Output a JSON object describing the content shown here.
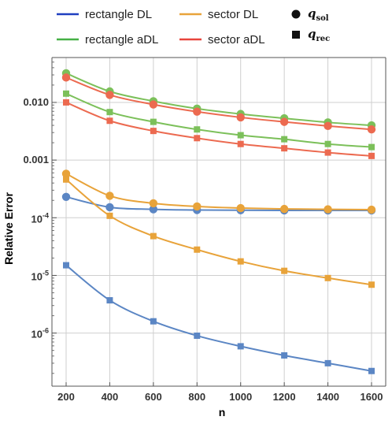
{
  "chart_data": {
    "type": "line",
    "xlabel": "n",
    "ylabel": "Relative Error",
    "y_scale": "log",
    "xlim": [
      200,
      1600
    ],
    "ylim": [
      1.2e-07,
      0.06
    ],
    "grid": true,
    "x_ticks": [
      {
        "value": 200,
        "label": "200"
      },
      {
        "value": 400,
        "label": "400"
      },
      {
        "value": 600,
        "label": "600"
      },
      {
        "value": 800,
        "label": "800"
      },
      {
        "value": 1000,
        "label": "1000"
      },
      {
        "value": 1200,
        "label": "1200"
      },
      {
        "value": 1400,
        "label": "1400"
      },
      {
        "value": 1600,
        "label": "1600"
      }
    ],
    "y_ticks": [
      {
        "value": 0.01,
        "label": "0.010",
        "base": "",
        "exp": ""
      },
      {
        "value": 0.001,
        "label": "0.001",
        "base": "",
        "exp": ""
      },
      {
        "value": 0.0001,
        "label": "",
        "base": "10",
        "exp": "-4"
      },
      {
        "value": 1e-05,
        "label": "",
        "base": "10",
        "exp": "-5"
      },
      {
        "value": 1e-06,
        "label": "",
        "base": "10",
        "exp": "-6"
      }
    ],
    "x": [
      200,
      400,
      600,
      800,
      1000,
      1200,
      1400,
      1600
    ],
    "series": [
      {
        "name": "rectangle DL",
        "quantity": "q_sol",
        "color": "#5b86c4",
        "line_color": "#1f3fc0",
        "marker": "circle",
        "values": [
          0.00023,
          0.000152,
          0.00014,
          0.000136,
          0.000135,
          0.000134,
          0.000134,
          0.000134
        ]
      },
      {
        "name": "rectangle DL",
        "quantity": "q_rec",
        "color": "#5b86c4",
        "line_color": "#1f3fc0",
        "marker": "square",
        "values": [
          1.5e-05,
          3.7e-06,
          1.6e-06,
          9e-07,
          5.9e-07,
          4.1e-07,
          3e-07,
          2.2e-07
        ]
      },
      {
        "name": "sector DL",
        "quantity": "q_sol",
        "color": "#e8a33a",
        "line_color": "#e8a33a",
        "marker": "circle",
        "values": [
          0.00058,
          0.00024,
          0.000178,
          0.000157,
          0.000147,
          0.000142,
          0.00014,
          0.000138
        ]
      },
      {
        "name": "sector DL",
        "quantity": "q_rec",
        "color": "#e8a33a",
        "line_color": "#e8a33a",
        "marker": "square",
        "values": [
          0.00046,
          0.000108,
          4.8e-05,
          2.8e-05,
          1.75e-05,
          1.2e-05,
          9e-06,
          6.9e-06
        ]
      },
      {
        "name": "rectangle aDL",
        "quantity": "q_sol",
        "color": "#7cc05a",
        "line_color": "#46b046",
        "marker": "circle",
        "values": [
          0.032,
          0.0155,
          0.0105,
          0.0078,
          0.0063,
          0.0053,
          0.0045,
          0.004
        ]
      },
      {
        "name": "rectangle aDL",
        "quantity": "q_rec",
        "color": "#7cc05a",
        "line_color": "#46b046",
        "marker": "square",
        "values": [
          0.0142,
          0.0068,
          0.0046,
          0.0034,
          0.0027,
          0.0023,
          0.0019,
          0.00168
        ]
      },
      {
        "name": "sector aDL",
        "quantity": "q_sol",
        "color": "#ec6a50",
        "line_color": "#e8453c",
        "marker": "circle",
        "values": [
          0.027,
          0.0135,
          0.0092,
          0.0069,
          0.0055,
          0.0046,
          0.0039,
          0.0034
        ]
      },
      {
        "name": "sector aDL",
        "quantity": "q_rec",
        "color": "#ec6a50",
        "line_color": "#e8453c",
        "marker": "square",
        "values": [
          0.01,
          0.0048,
          0.0032,
          0.0024,
          0.0019,
          0.0016,
          0.00135,
          0.00118
        ]
      }
    ],
    "legend": {
      "placement": "top",
      "entries": [
        {
          "label": "rectangle DL",
          "color": "#1f3fc0"
        },
        {
          "label": "sector DL",
          "color": "#e8a33a"
        },
        {
          "label": "rectangle aDL",
          "color": "#46b046"
        },
        {
          "label": "sector aDL",
          "color": "#e8453c"
        }
      ],
      "markers": [
        {
          "symbol": "q",
          "subscript": "sol",
          "marker": "circle"
        },
        {
          "symbol": "q",
          "subscript": "rec",
          "marker": "square"
        }
      ]
    }
  }
}
